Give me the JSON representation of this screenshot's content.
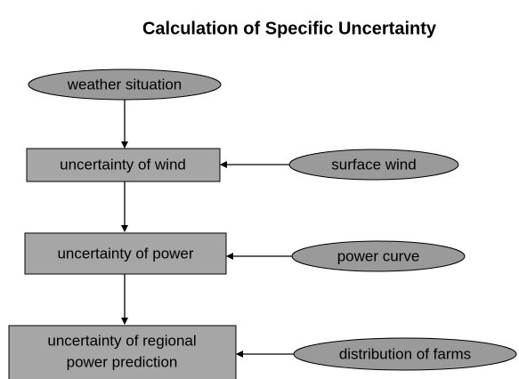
{
  "title": "Calculation of Specific Uncertainty",
  "nodes": [
    {
      "lines": [
        "weather situation"
      ]
    },
    {
      "lines": [
        "uncertainty of wind"
      ]
    },
    {
      "lines": [
        "surface wind"
      ]
    },
    {
      "lines": [
        "uncertainty of power"
      ]
    },
    {
      "lines": [
        "power curve"
      ]
    },
    {
      "lines": [
        "uncertainty of regional",
        "power prediction"
      ]
    },
    {
      "lines": [
        "distribution of farms"
      ]
    }
  ]
}
